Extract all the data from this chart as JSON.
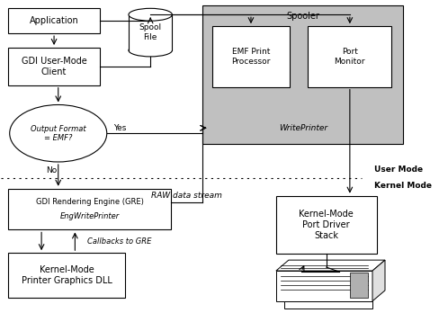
{
  "bg_color": "#ffffff",
  "spooler_bg": "#c0c0c0",
  "spooler_label": "Spooler",
  "emf_label": "EMF Print\nProcessor",
  "port_monitor_label": "Port\nMonitor",
  "write_printer_label": "WritePrinter",
  "application_label": "Application",
  "gdi_client_label": "GDI User-Mode\nClient",
  "decision_label": "Output Format\n= EMF?",
  "yes_label": "Yes",
  "no_label": "No",
  "gre_line1": "GDI Rendering Engine (GRE)",
  "gre_line2": "EngWritePrinter",
  "graphics_dll_label": "Kernel-Mode\nPrinter Graphics DLL",
  "callbacks_label": "Callbacks to GRE",
  "raw_label": "RAW data stream",
  "kernel_port_label": "Kernel-Mode\nPort Driver\nStack",
  "user_mode_label": "User Mode",
  "kernel_mode_label": "Kernel Mode",
  "spool_file_label": "Spool\nFile",
  "figsize": [
    4.88,
    3.58
  ],
  "dpi": 100
}
